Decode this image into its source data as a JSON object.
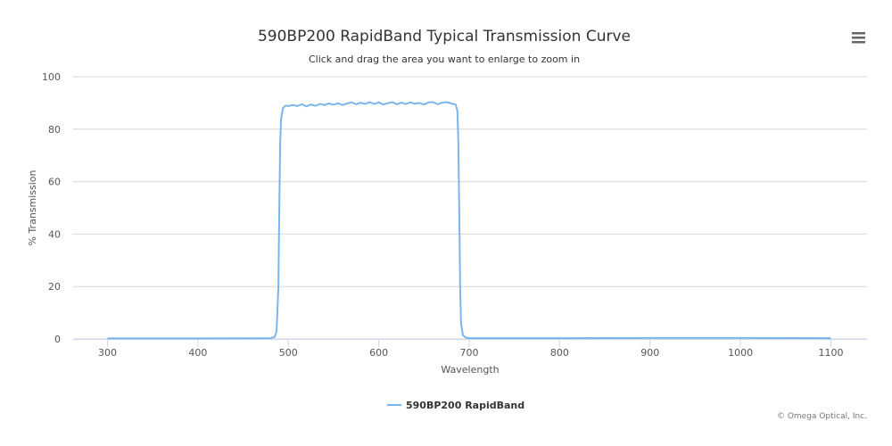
{
  "chart_data": {
    "type": "line",
    "title": "590BP200 RapidBand Typical Transmission Curve",
    "subtitle": "Click and drag the area you want to enlarge to zoom in",
    "xlabel": "Wavelength",
    "ylabel": "% Transmission",
    "xlim": [
      262,
      1140
    ],
    "ylim": [
      0,
      100
    ],
    "x_ticks": [
      300,
      400,
      500,
      600,
      700,
      800,
      900,
      1000,
      1100
    ],
    "y_ticks": [
      0,
      20,
      40,
      60,
      80,
      100
    ],
    "grid": true,
    "legend_position": "bottom-center",
    "series": [
      {
        "name": "590BP200 RapidBand",
        "color": "#7cb5ec",
        "points": [
          [
            300,
            0.2
          ],
          [
            400,
            0.2
          ],
          [
            480,
            0.3
          ],
          [
            485,
            0.8
          ],
          [
            487,
            3
          ],
          [
            489,
            20
          ],
          [
            490,
            50
          ],
          [
            491,
            75
          ],
          [
            492,
            84
          ],
          [
            494,
            88
          ],
          [
            497,
            89
          ],
          [
            500,
            88.8
          ],
          [
            505,
            89.2
          ],
          [
            510,
            88.8
          ],
          [
            515,
            89.5
          ],
          [
            520,
            88.7
          ],
          [
            525,
            89.4
          ],
          [
            530,
            88.9
          ],
          [
            535,
            89.6
          ],
          [
            540,
            89.2
          ],
          [
            545,
            89.8
          ],
          [
            550,
            89.3
          ],
          [
            555,
            89.9
          ],
          [
            560,
            89.2
          ],
          [
            565,
            89.8
          ],
          [
            570,
            90.2
          ],
          [
            575,
            89.5
          ],
          [
            580,
            90.1
          ],
          [
            585,
            89.6
          ],
          [
            590,
            90.3
          ],
          [
            595,
            89.6
          ],
          [
            600,
            90.2
          ],
          [
            605,
            89.4
          ],
          [
            610,
            89.9
          ],
          [
            615,
            90.3
          ],
          [
            620,
            89.5
          ],
          [
            625,
            90.1
          ],
          [
            630,
            89.6
          ],
          [
            635,
            90.2
          ],
          [
            640,
            89.7
          ],
          [
            645,
            90.0
          ],
          [
            650,
            89.4
          ],
          [
            655,
            90.2
          ],
          [
            660,
            90.3
          ],
          [
            665,
            89.5
          ],
          [
            670,
            90.1
          ],
          [
            675,
            90.3
          ],
          [
            680,
            89.8
          ],
          [
            685,
            89.4
          ],
          [
            687,
            87
          ],
          [
            688,
            75
          ],
          [
            689,
            50
          ],
          [
            690,
            20
          ],
          [
            691,
            6
          ],
          [
            693,
            1.5
          ],
          [
            696,
            0.6
          ],
          [
            700,
            0.3
          ],
          [
            800,
            0.3
          ],
          [
            900,
            0.4
          ],
          [
            1000,
            0.4
          ],
          [
            1100,
            0.3
          ]
        ]
      }
    ]
  },
  "ui": {
    "menu_icon": "hamburger-menu-icon",
    "credit": "© Omega Optical, Inc."
  }
}
